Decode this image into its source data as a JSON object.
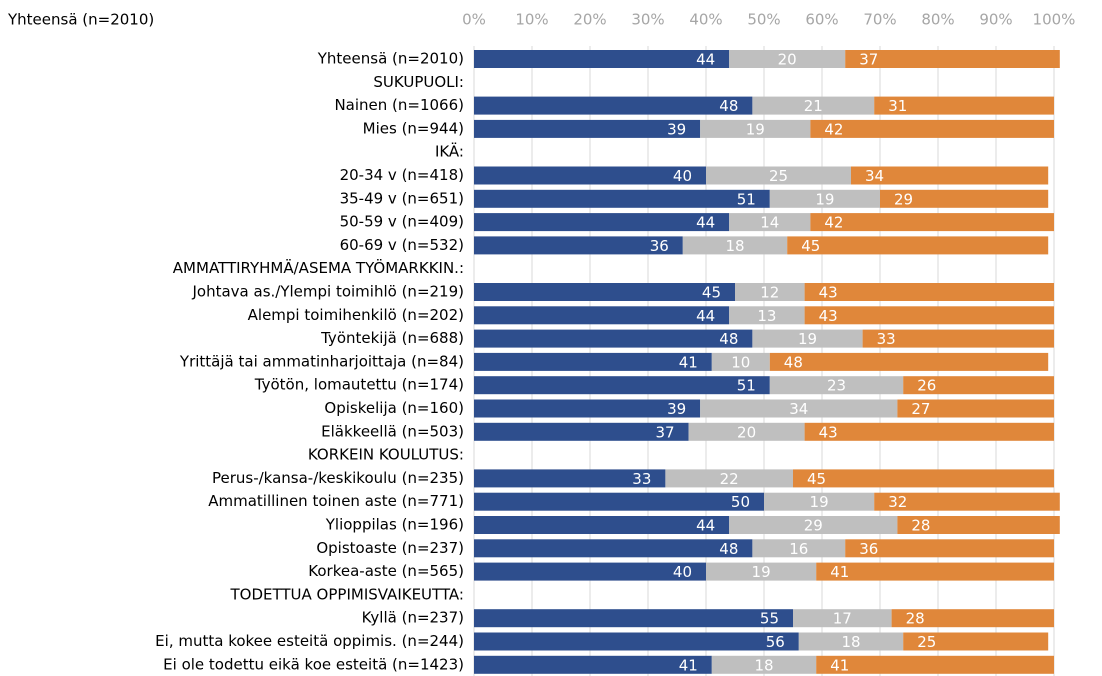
{
  "chart_data": {
    "type": "stacked_bar_horizontal",
    "title": "Yhteensä (n=2010)",
    "categories": [
      "Yhteensä (n=2010)",
      "SUKUPUOLI:",
      "Nainen (n=1066)",
      "Mies (n=944)",
      "IKÄ:",
      "20-34 v (n=418)",
      "35-49 v (n=651)",
      "50-59 v (n=409)",
      "60-69 v (n=532)",
      "AMMATTIRYHMÄ/ASEMA TYÖMARKKIN.:",
      "Johtava as./Ylempi toimihlö (n=219)",
      "Alempi toimihenkilö (n=202)",
      "Työntekijä (n=688)",
      "Yrittäjä tai ammatinharjoittaja (n=84)",
      "Työtön, lomautettu (n=174)",
      "Opiskelija (n=160)",
      "Eläkkeellä (n=503)",
      "KORKEIN KOULUTUS:",
      "Perus-/kansa-/keskikoulu (n=235)",
      "Ammatillinen toinen aste (n=771)",
      "Ylioppilas (n=196)",
      "Opistoaste (n=237)",
      "Korkea-aste (n=565)",
      "TODETTUA OPPIMISVAIKEUTTA:",
      "Kyllä (n=237)",
      "Ei, mutta kokee esteitä oppimis. (n=244)",
      "Ei ole todettu eikä koe esteitä (n=1423)"
    ],
    "series": [
      {
        "color": "#2e4e8d",
        "label_color": "#ffffff",
        "values": [
          44,
          null,
          48,
          39,
          null,
          40,
          51,
          44,
          36,
          null,
          45,
          44,
          48,
          41,
          51,
          39,
          37,
          null,
          33,
          50,
          44,
          48,
          40,
          null,
          55,
          56,
          41
        ]
      },
      {
        "color": "#bfbfbf",
        "label_color": "#ffffff",
        "values": [
          20,
          null,
          21,
          19,
          null,
          25,
          19,
          14,
          18,
          null,
          12,
          13,
          19,
          10,
          23,
          34,
          20,
          null,
          22,
          19,
          29,
          16,
          19,
          null,
          17,
          18,
          18
        ]
      },
      {
        "color": "#e0873a",
        "label_color": "#ffffff",
        "values": [
          37,
          null,
          31,
          42,
          null,
          34,
          29,
          42,
          45,
          null,
          43,
          43,
          33,
          48,
          26,
          27,
          43,
          null,
          45,
          32,
          28,
          36,
          41,
          null,
          28,
          25,
          41
        ]
      }
    ],
    "xlim": [
      0,
      100
    ],
    "xticks": [
      {
        "value": 0,
        "label": "0%"
      },
      {
        "value": 10,
        "label": "10%"
      },
      {
        "value": 20,
        "label": "20%"
      },
      {
        "value": 30,
        "label": "30%"
      },
      {
        "value": 40,
        "label": "40%"
      },
      {
        "value": 50,
        "label": "50%"
      },
      {
        "value": 60,
        "label": "60%"
      },
      {
        "value": 70,
        "label": "70%"
      },
      {
        "value": 80,
        "label": "80%"
      },
      {
        "value": 90,
        "label": "90%"
      },
      {
        "value": 100,
        "label": "100%"
      }
    ],
    "grid": true
  }
}
